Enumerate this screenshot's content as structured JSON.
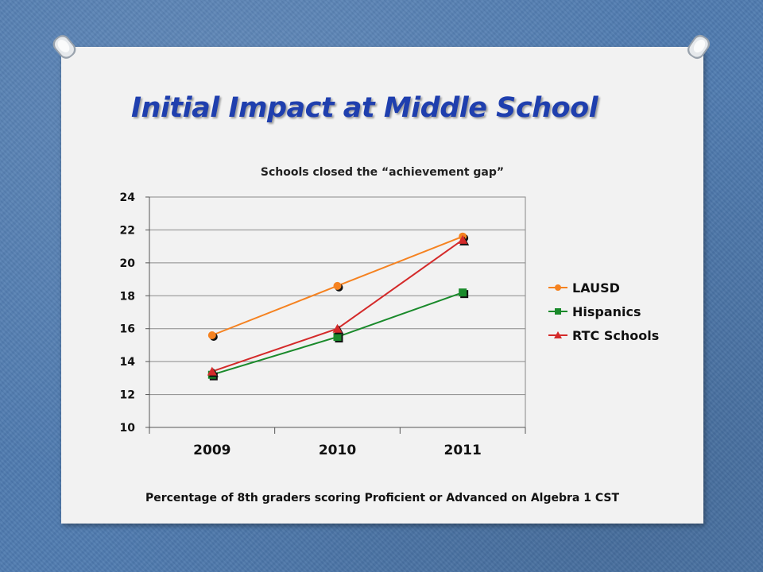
{
  "slide": {
    "title": "Initial Impact at Middle School",
    "caption": "Percentage of 8th graders scoring Proficient or Advanced on Algebra 1 CST"
  },
  "chart_data": {
    "type": "line",
    "title": "Schools closed the “achievement gap”",
    "categories": [
      "2009",
      "2010",
      "2011"
    ],
    "ylim": [
      10,
      24
    ],
    "yticks": [
      10,
      12,
      14,
      16,
      18,
      20,
      22,
      24
    ],
    "grid": true,
    "legend_position": "right",
    "series": [
      {
        "name": "LAUSD",
        "values": [
          15.6,
          18.6,
          21.6
        ],
        "color": "#f58220",
        "marker": "circle"
      },
      {
        "name": "Hispanics",
        "values": [
          13.2,
          15.5,
          18.2
        ],
        "color": "#1a8a2b",
        "marker": "square"
      },
      {
        "name": "RTC Schools",
        "values": [
          13.4,
          16.0,
          21.4
        ],
        "color": "#d42a2a",
        "marker": "triangle"
      }
    ]
  }
}
